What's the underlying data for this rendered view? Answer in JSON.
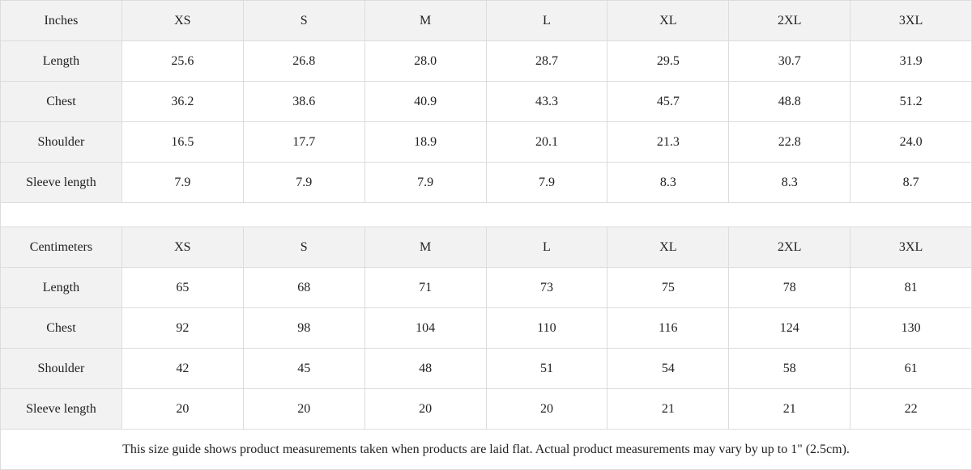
{
  "inches": {
    "unit": "Inches",
    "sizes": [
      "XS",
      "S",
      "M",
      "L",
      "XL",
      "2XL",
      "3XL"
    ],
    "rows": [
      {
        "label": "Length",
        "values": [
          "25.6",
          "26.8",
          "28.0",
          "28.7",
          "29.5",
          "30.7",
          "31.9"
        ]
      },
      {
        "label": "Chest",
        "values": [
          "36.2",
          "38.6",
          "40.9",
          "43.3",
          "45.7",
          "48.8",
          "51.2"
        ]
      },
      {
        "label": "Shoulder",
        "values": [
          "16.5",
          "17.7",
          "18.9",
          "20.1",
          "21.3",
          "22.8",
          "24.0"
        ]
      },
      {
        "label": "Sleeve length",
        "values": [
          "7.9",
          "7.9",
          "7.9",
          "7.9",
          "8.3",
          "8.3",
          "8.7"
        ]
      }
    ]
  },
  "centimeters": {
    "unit": "Centimeters",
    "sizes": [
      "XS",
      "S",
      "M",
      "L",
      "XL",
      "2XL",
      "3XL"
    ],
    "rows": [
      {
        "label": "Length",
        "values": [
          "65",
          "68",
          "71",
          "73",
          "75",
          "78",
          "81"
        ]
      },
      {
        "label": "Chest",
        "values": [
          "92",
          "98",
          "104",
          "110",
          "116",
          "124",
          "130"
        ]
      },
      {
        "label": "Shoulder",
        "values": [
          "42",
          "45",
          "48",
          "51",
          "54",
          "58",
          "61"
        ]
      },
      {
        "label": "Sleeve length",
        "values": [
          "20",
          "20",
          "20",
          "20",
          "21",
          "21",
          "22"
        ]
      }
    ]
  },
  "note": "This size guide shows product measurements taken when products are laid flat.  Actual product measurements may vary by up to 1\" (2.5cm)."
}
